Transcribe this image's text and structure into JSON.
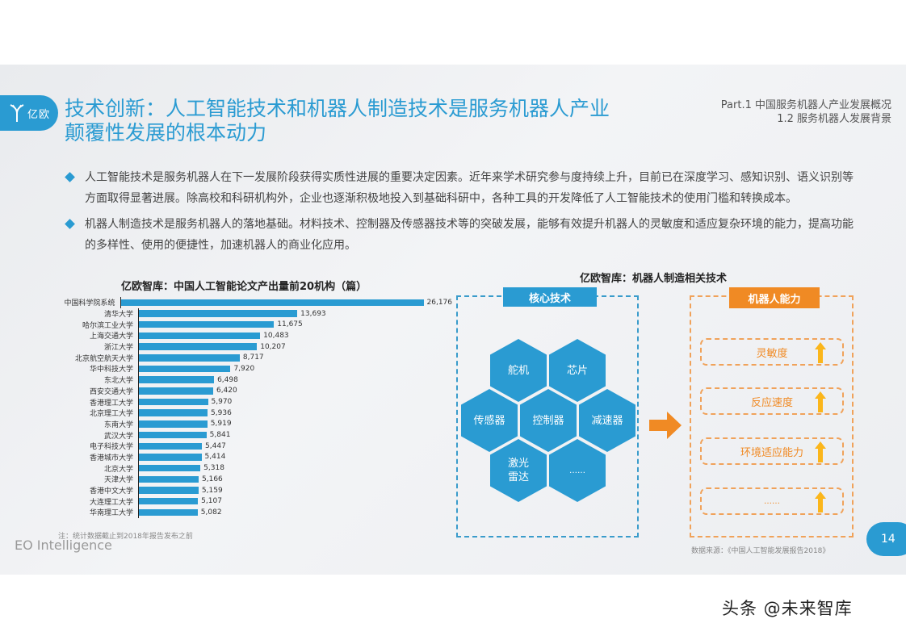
{
  "header": {
    "logo_text": "亿欧",
    "title_line1": "技术创新：人工智能技术和机器人制造技术是服务机器人产业",
    "title_line2": "颠覆性发展的根本动力",
    "part_line1": "Part.1 中国服务机器人产业发展概况",
    "part_line2": "1.2 服务机器人发展背景"
  },
  "bullets": [
    "人工智能技术是服务机器人在下一发展阶段获得实质性进展的重要决定因素。近年来学术研究参与度持续上升，目前已在深度学习、感知识别、语义识别等方面取得显著进展。除高校和科研机构外，企业也逐渐积极地投入到基础科研中，各种工具的开发降低了人工智能技术的使用门槛和转换成本。",
    "机器人制造技术是服务机器人的落地基础。材料技术、控制器及传感器技术等的突破发展，能够有效提升机器人的灵敏度和适应复杂环境的能力，提高功能的多样性、使用的便捷性，加速机器人的商业化应用。"
  ],
  "chart_data": {
    "type": "bar",
    "orientation": "horizontal",
    "title": "亿欧智库：中国人工智能论文产出量前20机构（篇）",
    "categories": [
      "中国科学院系统",
      "清华大学",
      "哈尔滨工业大学",
      "上海交通大学",
      "浙江大学",
      "北京航空航天大学",
      "华中科技大学",
      "东北大学",
      "西安交通大学",
      "香港理工大学",
      "北京理工大学",
      "东南大学",
      "武汉大学",
      "电子科技大学",
      "香港城市大学",
      "北京大学",
      "天津大学",
      "香港中文大学",
      "大连理工大学",
      "华南理工大学"
    ],
    "values": [
      26176,
      13693,
      11675,
      10483,
      10207,
      8717,
      7920,
      6498,
      6420,
      5970,
      5936,
      5919,
      5841,
      5447,
      5414,
      5318,
      5166,
      5159,
      5107,
      5082
    ],
    "value_labels": [
      "26,176",
      "13,693",
      "11,675",
      "10,483",
      "10,207",
      "8,717",
      "7,920",
      "6,498",
      "6,420",
      "5,970",
      "5,936",
      "5,919",
      "5,841",
      "5,447",
      "5,414",
      "5,318",
      "5,166",
      "5,159",
      "5,107",
      "5,082"
    ],
    "xlabel": "",
    "ylabel": "",
    "grid": false,
    "bar_color": "#2a9bd2"
  },
  "chart_note": "注：统计数据截止到2018年报告发布之前",
  "footer": {
    "brand": "EO Intelligence",
    "source": "数据来源：《中国人工智能发展报告2018》",
    "page_number": "14",
    "watermark": "头条 @未来智库"
  },
  "diagram": {
    "title": "亿欧智库：机器人制造相关技术",
    "core_label": "核心技术",
    "core_items": [
      "舵机",
      "芯片",
      "传感器",
      "控制器",
      "减速器",
      "激光\n雷达",
      "……"
    ],
    "capability_label": "机器人能力",
    "capabilities": [
      "灵敏度",
      "反应速度",
      "环境适应能力",
      "……"
    ]
  },
  "colors": {
    "accent_blue": "#2a9bd2",
    "accent_orange": "#f08a24",
    "arrow_yellow": "#fbb61b"
  }
}
